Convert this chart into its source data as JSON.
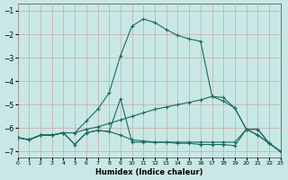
{
  "xlabel": "Humidex (Indice chaleur)",
  "background_color": "#c8e8e5",
  "grid_color": "#c8a8a8",
  "line_color": "#1a6b5e",
  "xlim": [
    0,
    23
  ],
  "ylim": [
    -7.25,
    -0.7
  ],
  "yticks": [
    -7,
    -6,
    -5,
    -4,
    -3,
    -2,
    -1
  ],
  "xticks": [
    0,
    1,
    2,
    3,
    4,
    5,
    6,
    7,
    8,
    9,
    10,
    11,
    12,
    13,
    14,
    15,
    16,
    17,
    18,
    19,
    20,
    21,
    22,
    23
  ],
  "lines": [
    {
      "x": [
        0,
        1,
        2,
        3,
        4,
        5,
        6,
        7,
        8,
        9,
        10,
        11,
        12,
        13,
        14,
        15,
        16,
        17,
        18,
        19,
        20,
        21,
        22,
        23
      ],
      "y": [
        -6.4,
        -6.5,
        -6.3,
        -6.3,
        -6.2,
        -6.2,
        -5.7,
        -5.2,
        -4.5,
        -2.9,
        -1.65,
        -1.35,
        -1.5,
        -1.8,
        -2.05,
        -2.2,
        -2.3,
        -4.65,
        -4.7,
        -5.15,
        -6.05,
        -6.3,
        -6.65,
        -7.0
      ]
    },
    {
      "x": [
        0,
        1,
        2,
        3,
        4,
        5,
        6,
        7,
        8,
        9,
        10,
        11,
        12,
        13,
        14,
        15,
        16,
        17,
        18,
        19,
        20,
        21,
        22,
        23
      ],
      "y": [
        -6.4,
        -6.5,
        -6.3,
        -6.3,
        -6.2,
        -6.2,
        -6.05,
        -5.95,
        -5.8,
        -5.65,
        -5.5,
        -5.35,
        -5.2,
        -5.1,
        -5.0,
        -4.9,
        -4.8,
        -4.65,
        -4.85,
        -5.15,
        -6.05,
        -6.3,
        -6.65,
        -7.0
      ]
    },
    {
      "x": [
        0,
        1,
        2,
        3,
        4,
        5,
        6,
        7,
        8,
        9,
        10,
        11,
        12,
        13,
        14,
        15,
        16,
        17,
        18,
        19,
        20,
        21,
        22,
        23
      ],
      "y": [
        -6.4,
        -6.5,
        -6.3,
        -6.3,
        -6.2,
        -6.7,
        -6.2,
        -6.1,
        -6.15,
        -4.75,
        -6.6,
        -6.6,
        -6.6,
        -6.6,
        -6.6,
        -6.6,
        -6.6,
        -6.6,
        -6.6,
        -6.6,
        -6.05,
        -6.05,
        -6.65,
        -7.0
      ]
    },
    {
      "x": [
        0,
        1,
        2,
        3,
        4,
        5,
        6,
        7,
        8,
        9,
        10,
        11,
        12,
        13,
        14,
        15,
        16,
        17,
        18,
        19,
        20,
        21,
        22,
        23
      ],
      "y": [
        -6.4,
        -6.5,
        -6.3,
        -6.3,
        -6.2,
        -6.7,
        -6.2,
        -6.1,
        -6.15,
        -6.3,
        -6.5,
        -6.55,
        -6.6,
        -6.6,
        -6.65,
        -6.65,
        -6.7,
        -6.7,
        -6.7,
        -6.75,
        -6.05,
        -6.05,
        -6.65,
        -7.0
      ]
    }
  ]
}
